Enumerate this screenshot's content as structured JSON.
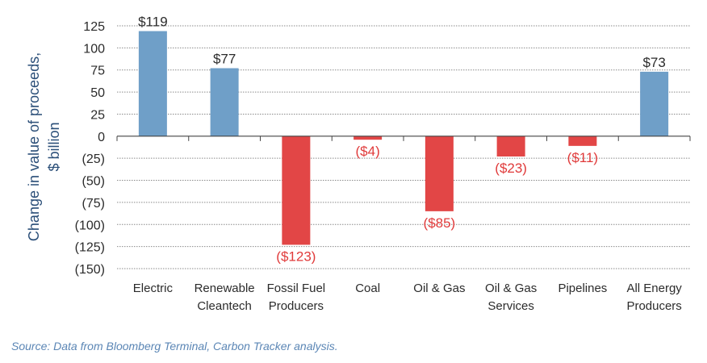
{
  "chart_data": {
    "type": "bar",
    "categories": [
      [
        "Electric"
      ],
      [
        "Renewable",
        "Cleantech"
      ],
      [
        "Fossil Fuel",
        "Producers"
      ],
      [
        "Coal"
      ],
      [
        "Oil & Gas"
      ],
      [
        "Oil & Gas",
        "Services"
      ],
      [
        "Pipelines"
      ],
      [
        "All Energy",
        "Producers"
      ]
    ],
    "values": [
      119,
      77,
      -123,
      -4,
      -85,
      -23,
      -11,
      73
    ],
    "data_labels": [
      "$119",
      "$77",
      "($123)",
      "($4)",
      "($85)",
      "($23)",
      "($11)",
      "$73"
    ],
    "ylabel": [
      "Change in value of proceeds,",
      "$ billion"
    ],
    "ylim": [
      -150,
      125
    ],
    "yticks": [
      125,
      100,
      75,
      50,
      25,
      0,
      -25,
      -50,
      -75,
      -100,
      -125,
      -150
    ],
    "ytick_labels": [
      "125",
      "100",
      "75",
      "50",
      "25",
      "0",
      "(25)",
      "(50)",
      "(75)",
      "(100)",
      "(125)",
      "(150)"
    ],
    "grid": true,
    "colors": {
      "positive": "#6f9fc8",
      "negative": "#e24646",
      "negative_label": "#e03a3a",
      "axis_text": "#2b2b2b",
      "ylabel": "#2a4e78",
      "grid": "#8a8a8a"
    }
  },
  "source": "Source: Data from Bloomberg Terminal, Carbon Tracker analysis."
}
